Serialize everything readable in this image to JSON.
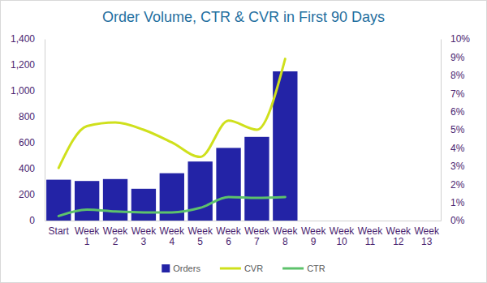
{
  "chart_data": {
    "type": "bar",
    "title": "Order Volume, CTR & CVR in First 90 Days",
    "categories": [
      "Start",
      "Week 1",
      "Week 2",
      "Week 3",
      "Week 4",
      "Week 5",
      "Week 6",
      "Week 7",
      "Week 8",
      "Week 9",
      "Week 10",
      "Week 11",
      "Week 12",
      "Week 13"
    ],
    "series": [
      {
        "name": "Orders",
        "type": "bar",
        "color": "#2323a6",
        "values": [
          315,
          305,
          320,
          245,
          365,
          455,
          560,
          645,
          1150,
          null,
          null,
          null,
          null,
          null
        ]
      },
      {
        "name": "CVR",
        "type": "line",
        "color": "#cfe01c",
        "axis": "y2",
        "values": [
          2.9,
          5.2,
          5.4,
          5.0,
          4.3,
          3.5,
          5.5,
          5.0,
          8.9,
          null,
          null,
          null,
          null,
          null
        ]
      },
      {
        "name": "CTR",
        "type": "line",
        "color": "#5dc26b",
        "axis": "y2",
        "values": [
          0.25,
          0.6,
          0.5,
          0.45,
          0.45,
          0.7,
          1.3,
          1.25,
          1.3,
          null,
          null,
          null,
          null,
          null
        ]
      }
    ],
    "ylim": [
      0,
      1400
    ],
    "yticks": [
      0,
      200,
      400,
      600,
      800,
      {
        "value": 1000,
        "label": "1,000"
      },
      {
        "value": 1200,
        "label": "1,200"
      },
      {
        "value": 1400,
        "label": "1,400"
      }
    ],
    "y2lim": [
      0,
      10
    ],
    "y2ticks": [
      {
        "value": 0,
        "label": "0%"
      },
      {
        "value": 1,
        "label": "1%"
      },
      {
        "value": 2,
        "label": "2%"
      },
      {
        "value": 3,
        "label": "3%"
      },
      {
        "value": 4,
        "label": "4%"
      },
      {
        "value": 5,
        "label": "5%"
      },
      {
        "value": 6,
        "label": "6%"
      },
      {
        "value": 7,
        "label": "7%"
      },
      {
        "value": 8,
        "label": "8%"
      },
      {
        "value": 9,
        "label": "9%"
      },
      {
        "value": 10,
        "label": "10%"
      }
    ],
    "grid": false,
    "legend": "bottom"
  }
}
